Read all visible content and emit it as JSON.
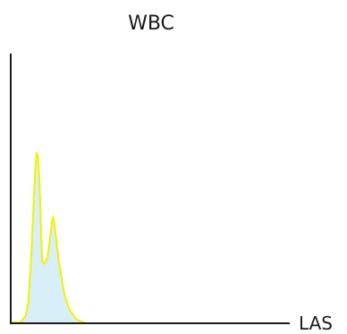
{
  "chart_data": {
    "type": "area",
    "title": "WBC",
    "xlabel": "LAS",
    "ylabel": "",
    "grid": false,
    "legend": "none",
    "xlim": [
      0,
      100
    ],
    "ylim": [
      0,
      100
    ],
    "series": [
      {
        "x": [
          0,
          3,
          5,
          6,
          7,
          8,
          8.5,
          9,
          9.5,
          10,
          10.5,
          11,
          12,
          13,
          14,
          14.5,
          15,
          15.5,
          16,
          16.5,
          17,
          18,
          19,
          20,
          21,
          22,
          23,
          24,
          25,
          26
        ],
        "y": [
          0,
          0,
          3,
          10,
          32,
          62,
          76,
          84,
          82,
          70,
          50,
          30,
          29,
          33,
          44,
          50,
          52,
          48,
          42,
          36,
          30,
          22,
          14,
          9,
          6,
          4,
          2,
          1,
          0.5,
          0
        ]
      }
    ],
    "colors": {
      "line": "#f2f200",
      "fill": "#d8eef8",
      "axis": "#1a1a1a"
    }
  }
}
